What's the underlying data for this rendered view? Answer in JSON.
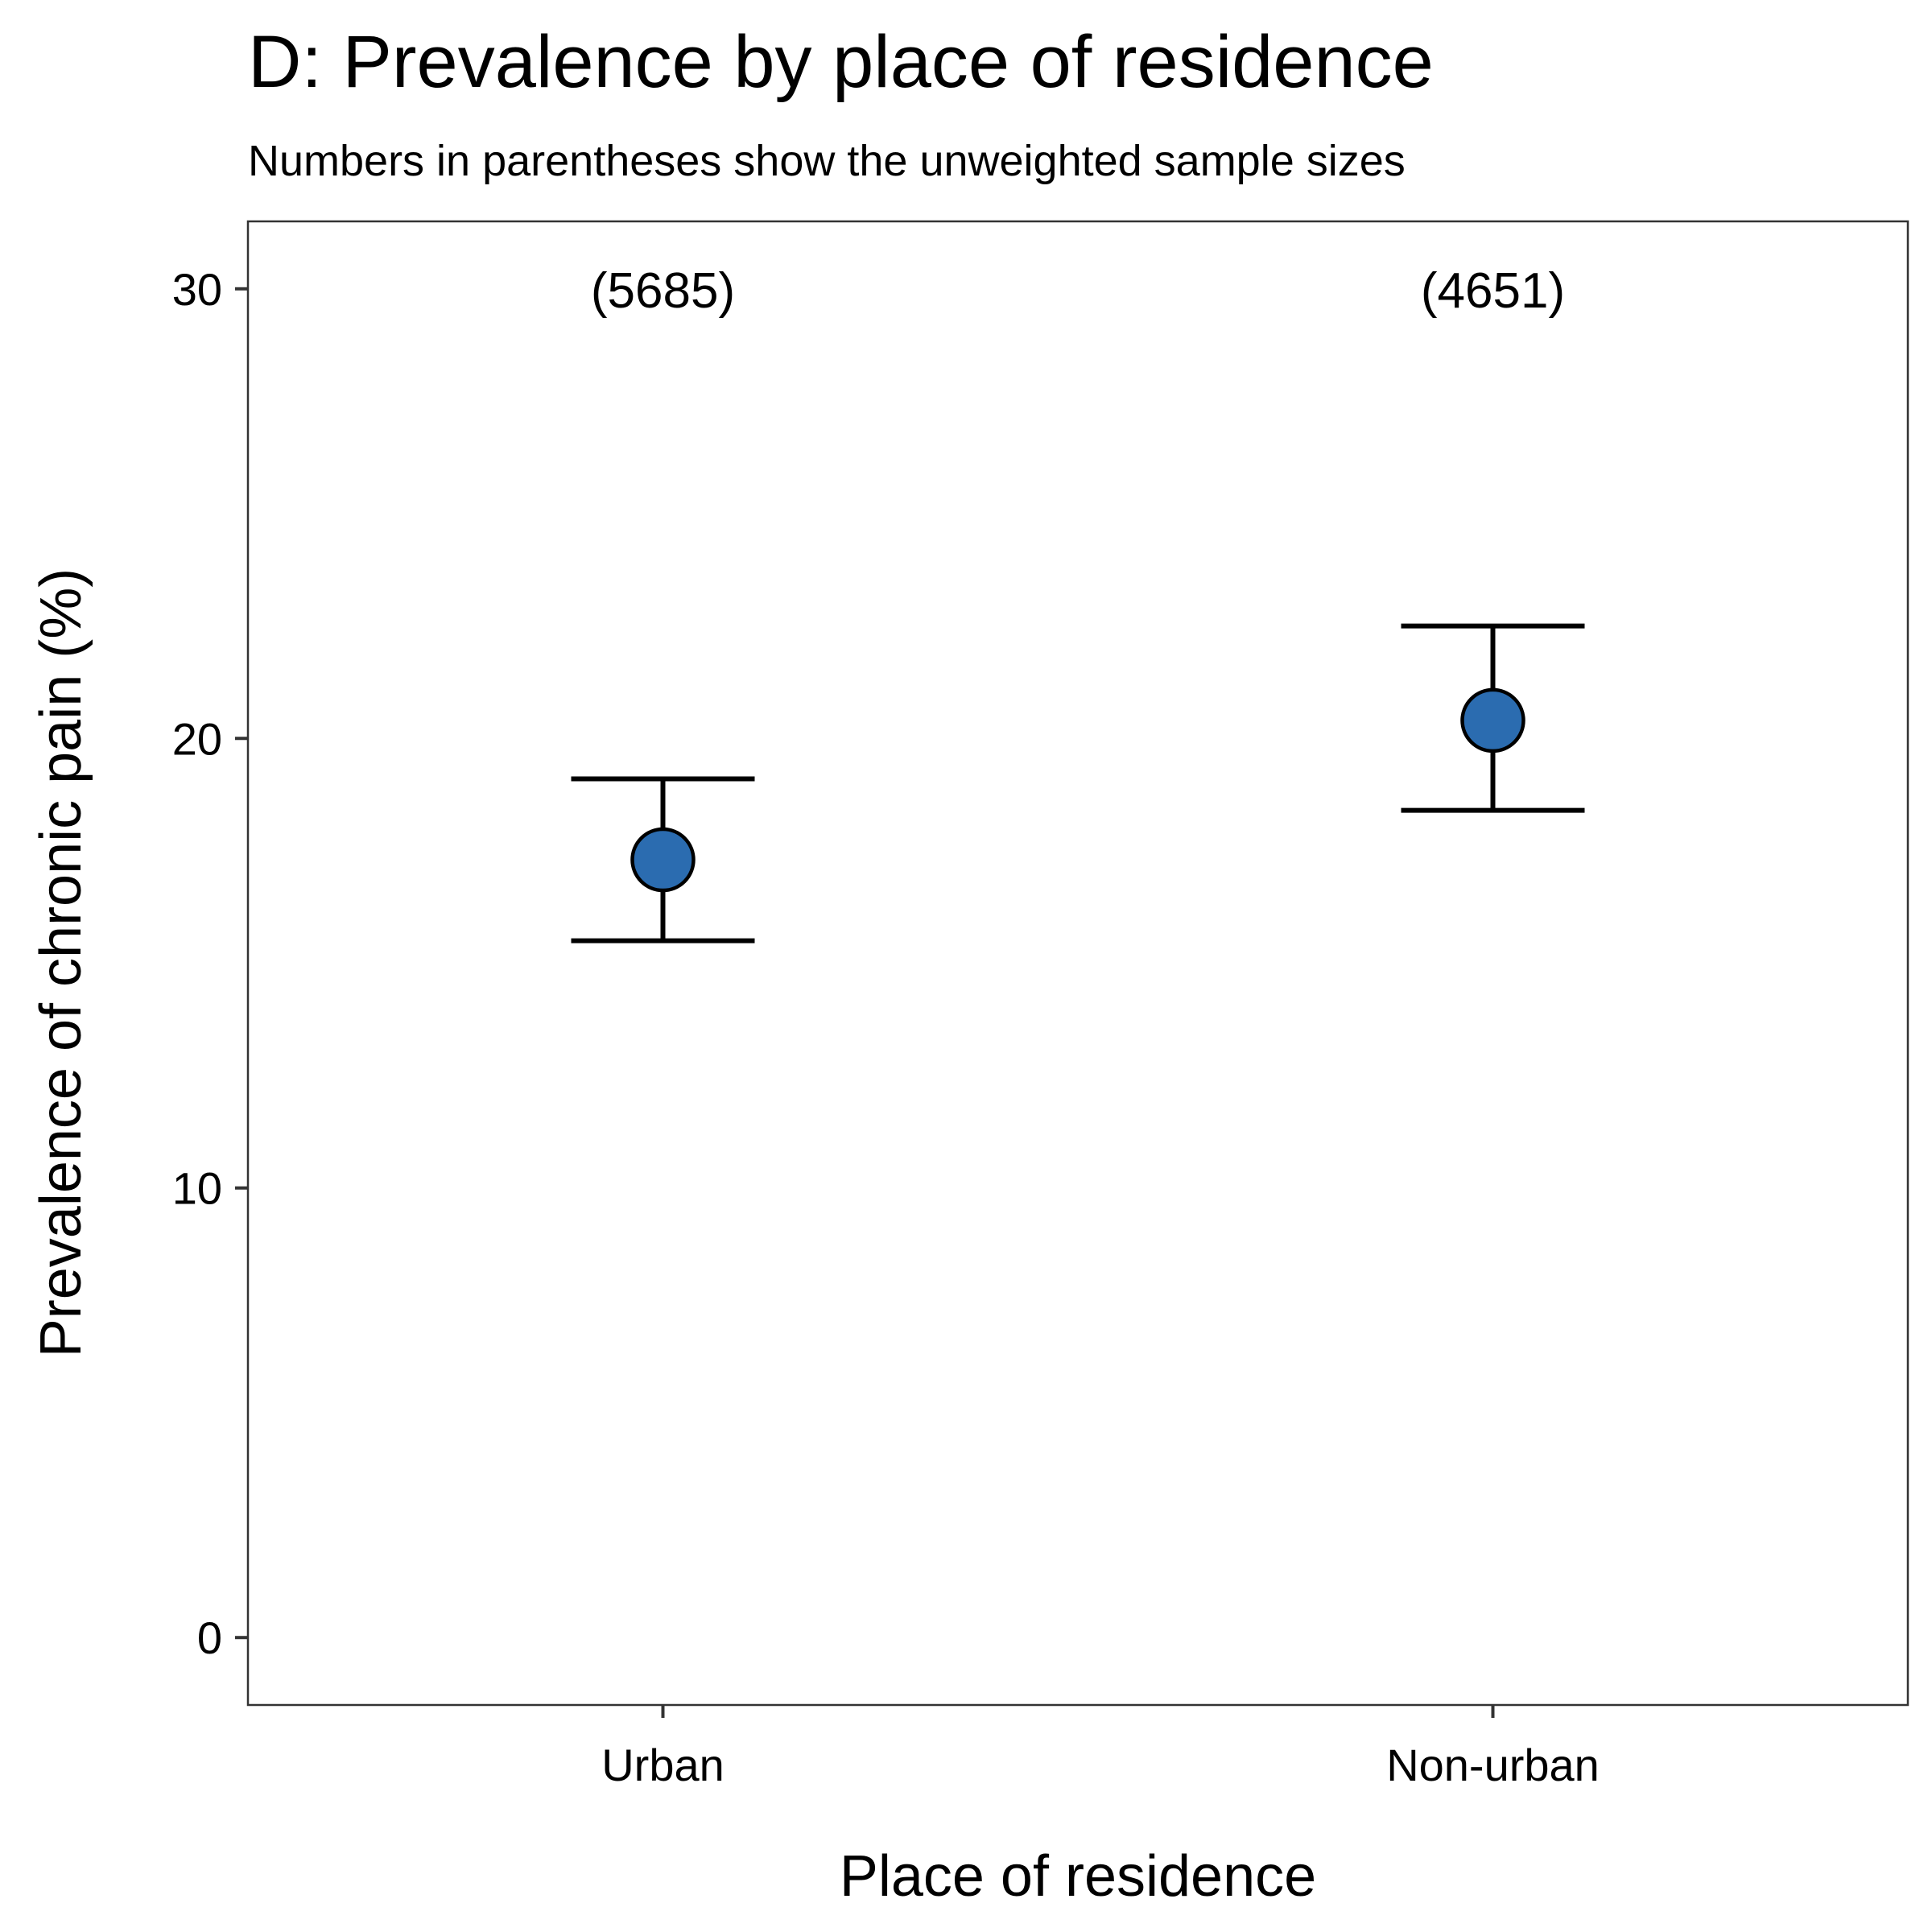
{
  "chart_data": {
    "type": "scatter",
    "title": "D: Prevalence by place of residence",
    "subtitle": "Numbers in parentheses show the unweighted sample sizes",
    "xlabel": "Place of residence",
    "ylabel": "Prevalence of chronic pain (%)",
    "categories": [
      "Urban",
      "Non-urban"
    ],
    "series": [
      {
        "values": [
          17.3,
          20.4
        ],
        "lower": [
          15.5,
          18.4
        ],
        "upper": [
          19.1,
          22.5
        ]
      }
    ],
    "annotations": [
      "(5685)",
      "(4651)"
    ],
    "yticks": [
      0,
      10,
      20,
      30
    ],
    "ylim": [
      -1.5,
      31.5
    ],
    "grid": false,
    "legend": "none",
    "point_color": "#2B6CB0",
    "line_color": "#000000"
  }
}
